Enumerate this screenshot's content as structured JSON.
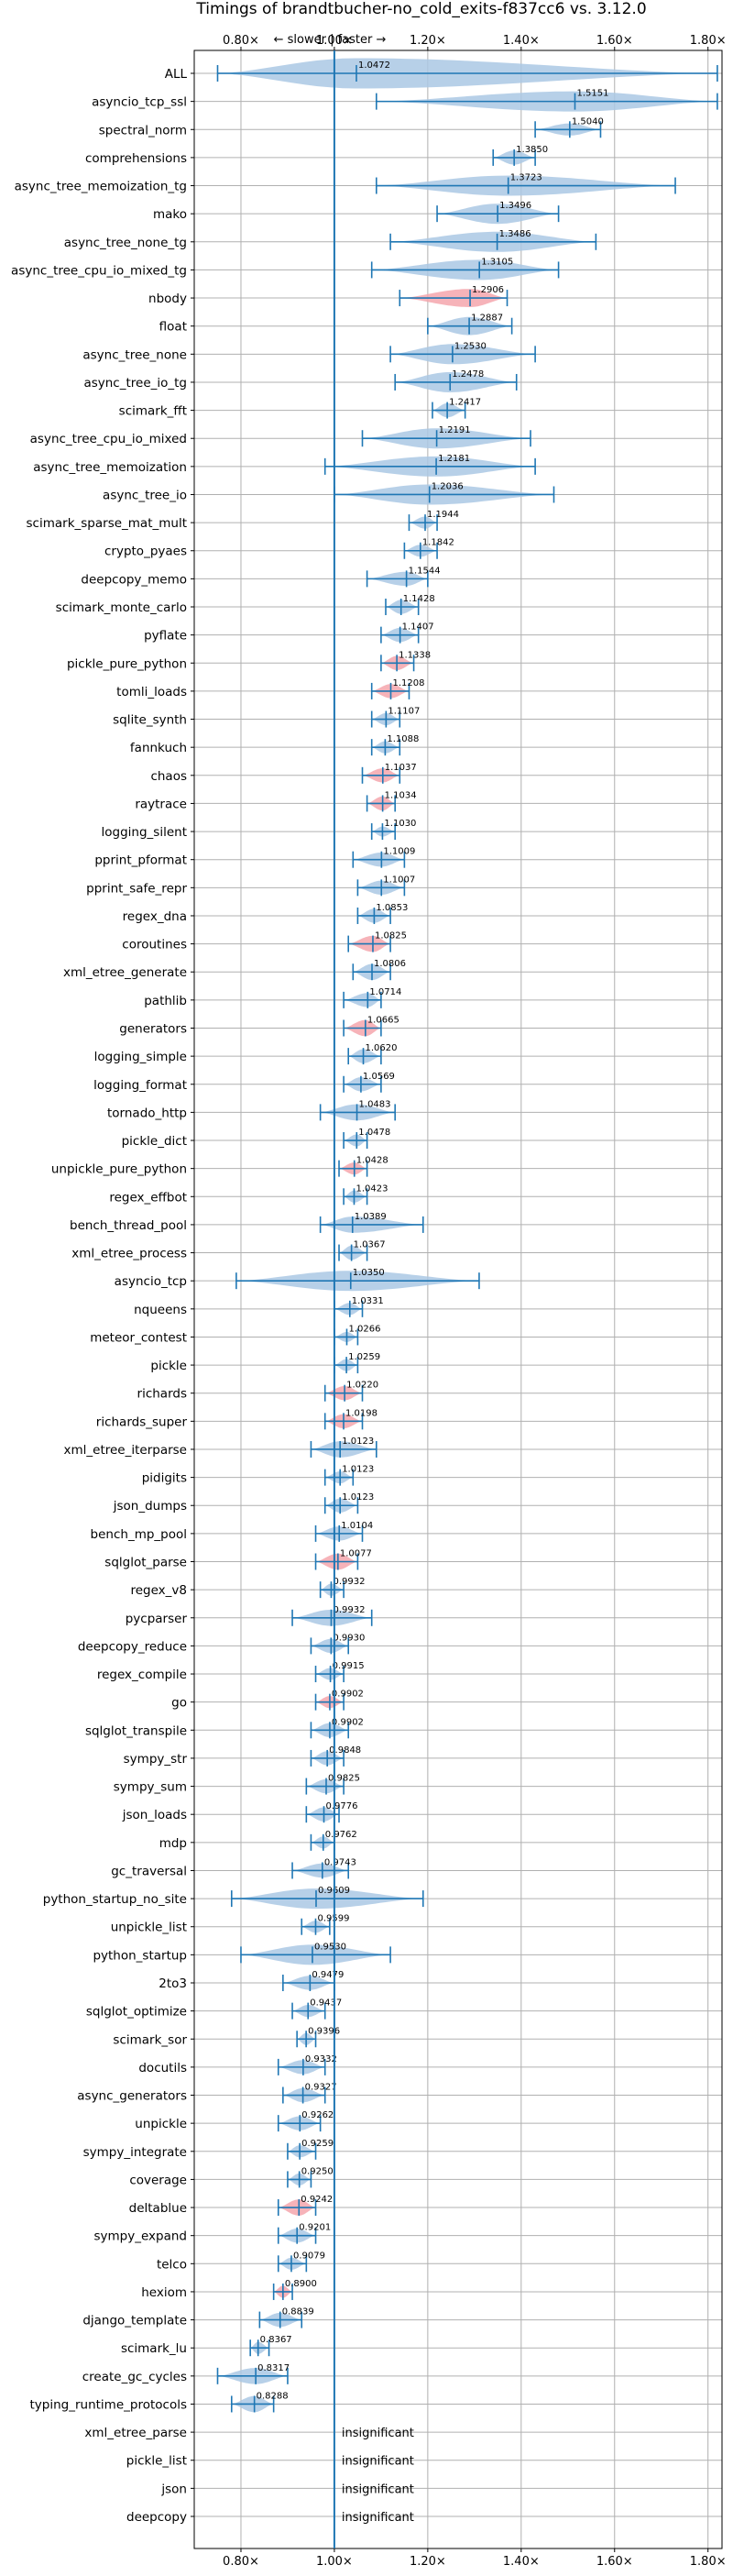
{
  "chart_data": {
    "type": "violin",
    "title": "Timings of brandtbucher-no_cold_exits-f837cc6 vs. 3.12.0",
    "direction_label": "← slower | faster →",
    "xlim": [
      0.7,
      1.83
    ],
    "xticks": [
      "0.80×",
      "1.00×",
      "1.20×",
      "1.40×",
      "1.60×",
      "1.80×"
    ],
    "xtick_values": [
      0.8,
      1.0,
      1.2,
      1.4,
      1.6,
      1.8
    ],
    "grid": true,
    "colors": {
      "faster": "#aac8e4",
      "slower": "#f4a6ad",
      "line": "#1f77b4",
      "reference": "#1f77b4"
    },
    "insignificant_label": "insignificant",
    "benchmarks": [
      {
        "name": "ALL",
        "value": 1.0472,
        "label": "1.0472",
        "min": 0.75,
        "max": 1.82,
        "width": 1.5,
        "status": "faster"
      },
      {
        "name": "asyncio_tcp_ssl",
        "value": 1.5151,
        "label": "1.5151",
        "min": 1.09,
        "max": 1.82,
        "width": 1.0,
        "status": "faster"
      },
      {
        "name": "spectral_norm",
        "value": 1.504,
        "label": "1.5040",
        "min": 1.43,
        "max": 1.57,
        "width": 0.6,
        "status": "faster"
      },
      {
        "name": "comprehensions",
        "value": 1.385,
        "label": "1.3850",
        "min": 1.34,
        "max": 1.43,
        "width": 0.7,
        "status": "faster"
      },
      {
        "name": "async_tree_memoization_tg",
        "value": 1.3723,
        "label": "1.3723",
        "min": 1.09,
        "max": 1.73,
        "width": 1.0,
        "status": "faster"
      },
      {
        "name": "mako",
        "value": 1.3496,
        "label": "1.3496",
        "min": 1.22,
        "max": 1.48,
        "width": 1.0,
        "status": "faster"
      },
      {
        "name": "async_tree_none_tg",
        "value": 1.3486,
        "label": "1.3486",
        "min": 1.12,
        "max": 1.56,
        "width": 1.0,
        "status": "faster"
      },
      {
        "name": "async_tree_cpu_io_mixed_tg",
        "value": 1.3105,
        "label": "1.3105",
        "min": 1.08,
        "max": 1.48,
        "width": 1.0,
        "status": "faster"
      },
      {
        "name": "nbody",
        "value": 1.2906,
        "label": "1.2906",
        "min": 1.14,
        "max": 1.37,
        "width": 0.9,
        "status": "slower"
      },
      {
        "name": "float",
        "value": 1.2887,
        "label": "1.2887",
        "min": 1.2,
        "max": 1.38,
        "width": 0.9,
        "status": "faster"
      },
      {
        "name": "async_tree_none",
        "value": 1.253,
        "label": "1.2530",
        "min": 1.12,
        "max": 1.43,
        "width": 1.0,
        "status": "faster"
      },
      {
        "name": "async_tree_io_tg",
        "value": 1.2478,
        "label": "1.2478",
        "min": 1.13,
        "max": 1.39,
        "width": 1.0,
        "status": "faster"
      },
      {
        "name": "scimark_fft",
        "value": 1.2417,
        "label": "1.2417",
        "min": 1.21,
        "max": 1.28,
        "width": 0.7,
        "status": "faster"
      },
      {
        "name": "async_tree_cpu_io_mixed",
        "value": 1.2191,
        "label": "1.2191",
        "min": 1.06,
        "max": 1.42,
        "width": 1.0,
        "status": "faster"
      },
      {
        "name": "async_tree_memoization",
        "value": 1.2181,
        "label": "1.2181",
        "min": 0.98,
        "max": 1.43,
        "width": 1.0,
        "status": "faster"
      },
      {
        "name": "async_tree_io",
        "value": 1.2036,
        "label": "1.2036",
        "min": 1.0,
        "max": 1.47,
        "width": 1.0,
        "status": "faster"
      },
      {
        "name": "scimark_sparse_mat_mult",
        "value": 1.1944,
        "label": "1.1944",
        "min": 1.16,
        "max": 1.22,
        "width": 0.6,
        "status": "faster"
      },
      {
        "name": "crypto_pyaes",
        "value": 1.1842,
        "label": "1.1842",
        "min": 1.15,
        "max": 1.22,
        "width": 0.6,
        "status": "faster"
      },
      {
        "name": "deepcopy_memo",
        "value": 1.1544,
        "label": "1.1544",
        "min": 1.07,
        "max": 1.2,
        "width": 0.7,
        "status": "faster"
      },
      {
        "name": "scimark_monte_carlo",
        "value": 1.1428,
        "label": "1.1428",
        "min": 1.11,
        "max": 1.18,
        "width": 0.7,
        "status": "faster"
      },
      {
        "name": "pyflate",
        "value": 1.1407,
        "label": "1.1407",
        "min": 1.1,
        "max": 1.18,
        "width": 0.7,
        "status": "faster"
      },
      {
        "name": "pickle_pure_python",
        "value": 1.1338,
        "label": "1.1338",
        "min": 1.1,
        "max": 1.17,
        "width": 0.7,
        "status": "slower"
      },
      {
        "name": "tomli_loads",
        "value": 1.1208,
        "label": "1.1208",
        "min": 1.08,
        "max": 1.16,
        "width": 0.7,
        "status": "slower"
      },
      {
        "name": "sqlite_synth",
        "value": 1.1107,
        "label": "1.1107",
        "min": 1.08,
        "max": 1.14,
        "width": 0.6,
        "status": "faster"
      },
      {
        "name": "fannkuch",
        "value": 1.1088,
        "label": "1.1088",
        "min": 1.08,
        "max": 1.14,
        "width": 0.6,
        "status": "faster"
      },
      {
        "name": "chaos",
        "value": 1.1037,
        "label": "1.1037",
        "min": 1.06,
        "max": 1.14,
        "width": 0.7,
        "status": "slower"
      },
      {
        "name": "raytrace",
        "value": 1.1034,
        "label": "1.1034",
        "min": 1.07,
        "max": 1.13,
        "width": 0.7,
        "status": "slower"
      },
      {
        "name": "logging_silent",
        "value": 1.103,
        "label": "1.1030",
        "min": 1.08,
        "max": 1.13,
        "width": 0.5,
        "status": "faster"
      },
      {
        "name": "pprint_pformat",
        "value": 1.1009,
        "label": "1.1009",
        "min": 1.04,
        "max": 1.15,
        "width": 0.7,
        "status": "faster"
      },
      {
        "name": "pprint_safe_repr",
        "value": 1.1007,
        "label": "1.1007",
        "min": 1.05,
        "max": 1.15,
        "width": 0.7,
        "status": "faster"
      },
      {
        "name": "regex_dna",
        "value": 1.0853,
        "label": "1.0853",
        "min": 1.05,
        "max": 1.12,
        "width": 0.7,
        "status": "faster"
      },
      {
        "name": "coroutines",
        "value": 1.0825,
        "label": "1.0825",
        "min": 1.03,
        "max": 1.12,
        "width": 0.8,
        "status": "slower"
      },
      {
        "name": "xml_etree_generate",
        "value": 1.0806,
        "label": "1.0806",
        "min": 1.04,
        "max": 1.12,
        "width": 0.8,
        "status": "faster"
      },
      {
        "name": "pathlib",
        "value": 1.0714,
        "label": "1.0714",
        "min": 1.02,
        "max": 1.1,
        "width": 0.7,
        "status": "faster"
      },
      {
        "name": "generators",
        "value": 1.0665,
        "label": "1.0665",
        "min": 1.02,
        "max": 1.1,
        "width": 0.8,
        "status": "slower"
      },
      {
        "name": "logging_simple",
        "value": 1.062,
        "label": "1.0620",
        "min": 1.03,
        "max": 1.1,
        "width": 0.7,
        "status": "faster"
      },
      {
        "name": "logging_format",
        "value": 1.0569,
        "label": "1.0569",
        "min": 1.02,
        "max": 1.1,
        "width": 0.7,
        "status": "faster"
      },
      {
        "name": "tornado_http",
        "value": 1.0483,
        "label": "1.0483",
        "min": 0.97,
        "max": 1.13,
        "width": 0.8,
        "status": "faster"
      },
      {
        "name": "pickle_dict",
        "value": 1.0478,
        "label": "1.0478",
        "min": 1.02,
        "max": 1.07,
        "width": 0.6,
        "status": "faster"
      },
      {
        "name": "unpickle_pure_python",
        "value": 1.0428,
        "label": "1.0428",
        "min": 1.01,
        "max": 1.07,
        "width": 0.6,
        "status": "slower"
      },
      {
        "name": "regex_effbot",
        "value": 1.0423,
        "label": "1.0423",
        "min": 1.02,
        "max": 1.07,
        "width": 0.6,
        "status": "faster"
      },
      {
        "name": "bench_thread_pool",
        "value": 1.0389,
        "label": "1.0389",
        "min": 0.97,
        "max": 1.19,
        "width": 0.8,
        "status": "faster"
      },
      {
        "name": "xml_etree_process",
        "value": 1.0367,
        "label": "1.0367",
        "min": 1.01,
        "max": 1.07,
        "width": 0.7,
        "status": "faster"
      },
      {
        "name": "asyncio_tcp",
        "value": 1.035,
        "label": "1.0350",
        "min": 0.79,
        "max": 1.31,
        "width": 1.0,
        "status": "faster"
      },
      {
        "name": "nqueens",
        "value": 1.0331,
        "label": "1.0331",
        "min": 1.0,
        "max": 1.06,
        "width": 0.6,
        "status": "faster"
      },
      {
        "name": "meteor_contest",
        "value": 1.0266,
        "label": "1.0266",
        "min": 1.0,
        "max": 1.05,
        "width": 0.5,
        "status": "faster"
      },
      {
        "name": "pickle",
        "value": 1.0259,
        "label": "1.0259",
        "min": 1.0,
        "max": 1.05,
        "width": 0.6,
        "status": "faster"
      },
      {
        "name": "richards",
        "value": 1.022,
        "label": "1.0220",
        "min": 0.98,
        "max": 1.06,
        "width": 0.7,
        "status": "slower"
      },
      {
        "name": "richards_super",
        "value": 1.0198,
        "label": "1.0198",
        "min": 0.98,
        "max": 1.06,
        "width": 0.7,
        "status": "slower"
      },
      {
        "name": "xml_etree_iterparse",
        "value": 1.0123,
        "label": "1.0123",
        "min": 0.95,
        "max": 1.09,
        "width": 0.8,
        "status": "faster"
      },
      {
        "name": "pidigits",
        "value": 1.0123,
        "label": "1.0123",
        "min": 0.98,
        "max": 1.04,
        "width": 0.6,
        "status": "faster"
      },
      {
        "name": "json_dumps",
        "value": 1.0123,
        "label": "1.0123",
        "min": 0.98,
        "max": 1.05,
        "width": 0.7,
        "status": "faster"
      },
      {
        "name": "bench_mp_pool",
        "value": 1.0104,
        "label": "1.0104",
        "min": 0.96,
        "max": 1.06,
        "width": 0.7,
        "status": "faster"
      },
      {
        "name": "sqlglot_parse",
        "value": 1.0077,
        "label": "1.0077",
        "min": 0.96,
        "max": 1.05,
        "width": 0.8,
        "status": "slower"
      },
      {
        "name": "regex_v8",
        "value": 0.9932,
        "label": "0.9932",
        "min": 0.97,
        "max": 1.02,
        "width": 0.6,
        "status": "faster"
      },
      {
        "name": "pycparser",
        "value": 0.9932,
        "label": "0.9932",
        "min": 0.91,
        "max": 1.08,
        "width": 0.8,
        "status": "faster"
      },
      {
        "name": "deepcopy_reduce",
        "value": 0.993,
        "label": "0.9930",
        "min": 0.95,
        "max": 1.03,
        "width": 0.7,
        "status": "faster"
      },
      {
        "name": "regex_compile",
        "value": 0.9915,
        "label": "0.9915",
        "min": 0.96,
        "max": 1.02,
        "width": 0.6,
        "status": "faster"
      },
      {
        "name": "go",
        "value": 0.9902,
        "label": "0.9902",
        "min": 0.96,
        "max": 1.02,
        "width": 0.6,
        "status": "slower"
      },
      {
        "name": "sqlglot_transpile",
        "value": 0.9902,
        "label": "0.9902",
        "min": 0.95,
        "max": 1.03,
        "width": 0.7,
        "status": "faster"
      },
      {
        "name": "sympy_str",
        "value": 0.9848,
        "label": "0.9848",
        "min": 0.95,
        "max": 1.02,
        "width": 0.7,
        "status": "faster"
      },
      {
        "name": "sympy_sum",
        "value": 0.9825,
        "label": "0.9825",
        "min": 0.94,
        "max": 1.02,
        "width": 0.7,
        "status": "faster"
      },
      {
        "name": "json_loads",
        "value": 0.9776,
        "label": "0.9776",
        "min": 0.94,
        "max": 1.01,
        "width": 0.7,
        "status": "faster"
      },
      {
        "name": "mdp",
        "value": 0.9762,
        "label": "0.9762",
        "min": 0.95,
        "max": 1.0,
        "width": 0.6,
        "status": "faster"
      },
      {
        "name": "gc_traversal",
        "value": 0.9743,
        "label": "0.9743",
        "min": 0.91,
        "max": 1.03,
        "width": 0.7,
        "status": "faster"
      },
      {
        "name": "python_startup_no_site",
        "value": 0.9609,
        "label": "0.9609",
        "min": 0.78,
        "max": 1.19,
        "width": 1.0,
        "status": "faster"
      },
      {
        "name": "unpickle_list",
        "value": 0.9599,
        "label": "0.9599",
        "min": 0.93,
        "max": 0.99,
        "width": 0.6,
        "status": "faster"
      },
      {
        "name": "python_startup",
        "value": 0.953,
        "label": "0.9530",
        "min": 0.8,
        "max": 1.12,
        "width": 1.0,
        "status": "faster"
      },
      {
        "name": "2to3",
        "value": 0.9479,
        "label": "0.9479",
        "min": 0.89,
        "max": 1.0,
        "width": 0.7,
        "status": "faster"
      },
      {
        "name": "sqlglot_optimize",
        "value": 0.9437,
        "label": "0.9437",
        "min": 0.91,
        "max": 0.98,
        "width": 0.6,
        "status": "faster"
      },
      {
        "name": "scimark_sor",
        "value": 0.9396,
        "label": "0.9396",
        "min": 0.92,
        "max": 0.96,
        "width": 0.6,
        "status": "faster"
      },
      {
        "name": "docutils",
        "value": 0.9332,
        "label": "0.9332",
        "min": 0.88,
        "max": 0.98,
        "width": 0.7,
        "status": "faster"
      },
      {
        "name": "async_generators",
        "value": 0.9327,
        "label": "0.9327",
        "min": 0.89,
        "max": 0.98,
        "width": 0.7,
        "status": "faster"
      },
      {
        "name": "unpickle",
        "value": 0.9262,
        "label": "0.9262",
        "min": 0.88,
        "max": 0.97,
        "width": 0.7,
        "status": "faster"
      },
      {
        "name": "sympy_integrate",
        "value": 0.9259,
        "label": "0.9259",
        "min": 0.9,
        "max": 0.96,
        "width": 0.6,
        "status": "faster"
      },
      {
        "name": "coverage",
        "value": 0.925,
        "label": "0.9250",
        "min": 0.9,
        "max": 0.95,
        "width": 0.6,
        "status": "faster"
      },
      {
        "name": "deltablue",
        "value": 0.9242,
        "label": "0.9242",
        "min": 0.88,
        "max": 0.96,
        "width": 0.8,
        "status": "slower"
      },
      {
        "name": "sympy_expand",
        "value": 0.9201,
        "label": "0.9201",
        "min": 0.88,
        "max": 0.96,
        "width": 0.7,
        "status": "faster"
      },
      {
        "name": "telco",
        "value": 0.9079,
        "label": "0.9079",
        "min": 0.88,
        "max": 0.94,
        "width": 0.6,
        "status": "faster"
      },
      {
        "name": "hexiom",
        "value": 0.89,
        "label": "0.8900",
        "min": 0.87,
        "max": 0.91,
        "width": 0.6,
        "status": "slower"
      },
      {
        "name": "django_template",
        "value": 0.8839,
        "label": "0.8839",
        "min": 0.84,
        "max": 0.93,
        "width": 0.7,
        "status": "faster"
      },
      {
        "name": "scimark_lu",
        "value": 0.8367,
        "label": "0.8367",
        "min": 0.82,
        "max": 0.86,
        "width": 0.6,
        "status": "faster"
      },
      {
        "name": "create_gc_cycles",
        "value": 0.8317,
        "label": "0.8317",
        "min": 0.75,
        "max": 0.9,
        "width": 0.8,
        "status": "faster"
      },
      {
        "name": "typing_runtime_protocols",
        "value": 0.8288,
        "label": "0.8288",
        "min": 0.78,
        "max": 0.87,
        "width": 0.8,
        "status": "faster"
      },
      {
        "name": "xml_etree_parse",
        "insignificant": true
      },
      {
        "name": "pickle_list",
        "insignificant": true
      },
      {
        "name": "json",
        "insignificant": true
      },
      {
        "name": "deepcopy",
        "insignificant": true
      }
    ]
  }
}
